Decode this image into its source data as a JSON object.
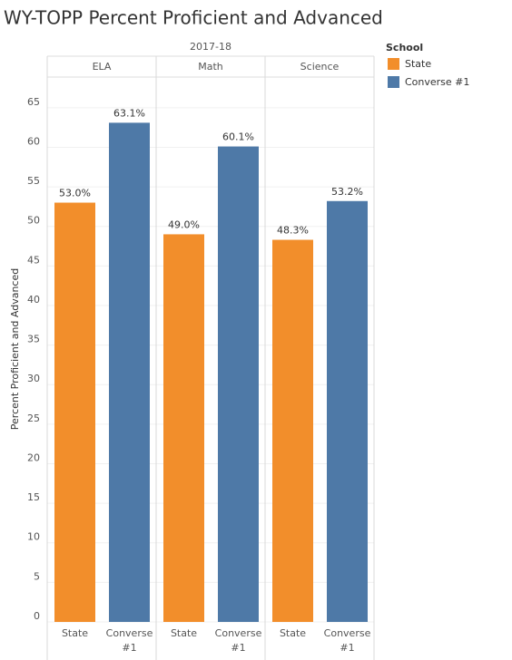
{
  "chart_data": {
    "type": "bar",
    "title": "WY-TOPP Percent Proficient and Advanced",
    "column_header": "2017-18",
    "categories": [
      "ELA",
      "Math",
      "Science"
    ],
    "y_label": "Percent Proficient and Advanced",
    "legend_title": "School",
    "series": [
      {
        "name": "State",
        "color": "#f28e2b",
        "values": [
          53.0,
          49.0,
          48.3
        ],
        "value_labels": [
          "53.0%",
          "49.0%",
          "48.3%"
        ]
      },
      {
        "name": "Converse #1",
        "color": "#4e79a7",
        "values": [
          63.1,
          60.1,
          53.2
        ],
        "value_labels": [
          "63.1%",
          "60.1%",
          "53.2%"
        ]
      }
    ],
    "ylim": [
      0,
      67.5
    ],
    "yticks": [
      0,
      5,
      10,
      15,
      20,
      25,
      30,
      35,
      40,
      45,
      50,
      55,
      60,
      65
    ],
    "grid": true
  }
}
